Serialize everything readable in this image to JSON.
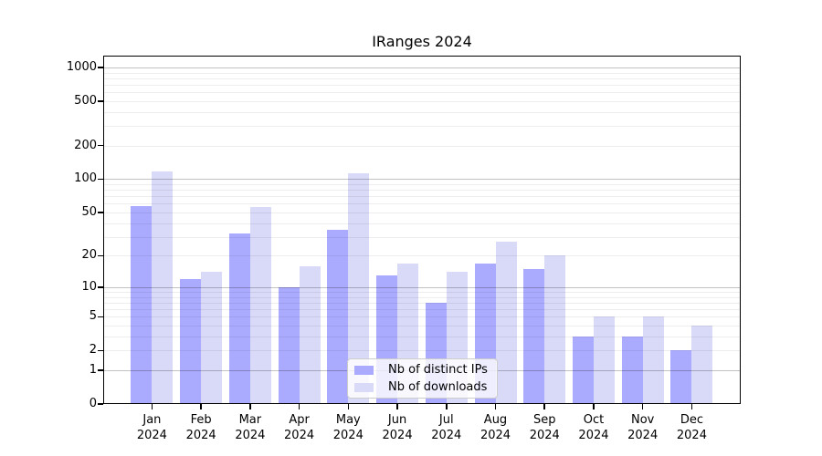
{
  "title": "IRanges 2024",
  "colors": {
    "distinct_ips": "#aaaaff",
    "downloads": "#d9d9f8",
    "axis": "#000000",
    "grid_major": "rgba(0,0,0,0.24)",
    "grid_minor": "rgba(0,0,0,0.07)",
    "legend_border": "#cccccc",
    "legend_bg": "rgba(255,255,255,0.8)"
  },
  "chart_data": {
    "type": "bar",
    "title": "IRanges 2024",
    "categories": [
      "Jan 2024",
      "Feb 2024",
      "Mar 2024",
      "Apr 2024",
      "May 2024",
      "Jun 2024",
      "Jul 2024",
      "Aug 2024",
      "Sep 2024",
      "Oct 2024",
      "Nov 2024",
      "Dec 2024"
    ],
    "series": [
      {
        "name": "Nb of distinct IPs",
        "color_key": "distinct_ips",
        "values": [
          57,
          12,
          32,
          10,
          35,
          13,
          7,
          17,
          15,
          3,
          3,
          2
        ]
      },
      {
        "name": "Nb of downloads",
        "color_key": "downloads",
        "values": [
          117,
          14,
          56,
          16,
          112,
          17,
          14,
          27,
          20,
          5,
          5,
          4
        ]
      }
    ],
    "xlabel": "",
    "ylabel": "",
    "yscale": "log1p",
    "ylim": [
      0,
      1275
    ],
    "ytick_labels": [
      0,
      1,
      2,
      5,
      10,
      20,
      50,
      100,
      200,
      500,
      1000
    ],
    "grid_major_values": [
      1,
      10,
      100,
      1000
    ],
    "grid": "horizontal major+minor, drawn over bars",
    "legend_position": "lower center, inside plot"
  }
}
